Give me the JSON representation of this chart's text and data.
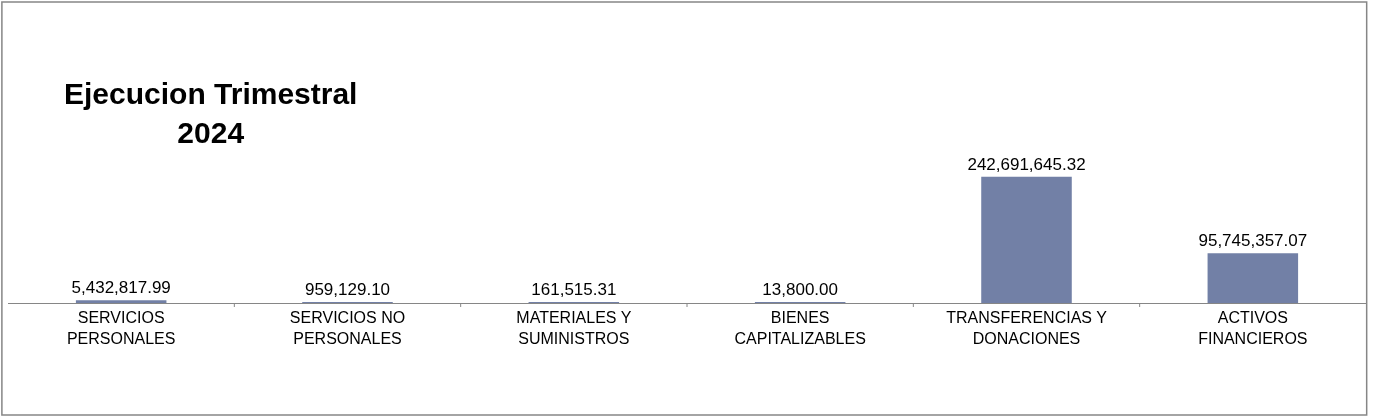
{
  "chart_data": {
    "type": "bar",
    "title": "Ejecucion Trimestral\n2024",
    "categories": [
      "SERVICIOS PERSONALES",
      "SERVICIOS NO PERSONALES",
      "MATERIALES Y SUMINISTROS",
      "BIENES CAPITALIZABLES",
      "TRANSFERENCIAS Y DONACIONES",
      "ACTIVOS FINANCIEROS"
    ],
    "values": [
      5432817.99,
      959129.1,
      161515.31,
      13800.0,
      242691645.32,
      95745357.07
    ],
    "value_labels": [
      "5,432,817.99",
      "959,129.10",
      "161,515.31",
      "13,800.00",
      "242,691,645.32",
      "95,745,357.07"
    ],
    "color": "#7280a6",
    "tick_labels": "x"
  }
}
